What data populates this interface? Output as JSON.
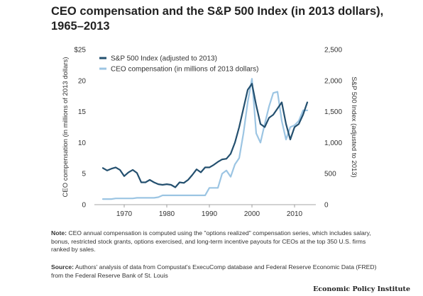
{
  "title": "CEO compensation and the S&P 500 Index (in 2013 dollars), 1965–2013",
  "note": {
    "label": "Note:",
    "text": "CEO annual compensation is computed using the \"options realized\" compensation series, which includes salary, bonus, restricted stock grants, options exercised, and long-term incentive payouts for CEOs at the top 350 U.S. firms ranked by sales."
  },
  "source": {
    "label": "Source:",
    "text": "Authors' analysis of data from Compustat's ExecuComp database and Federal Reserve Economic Data (FRED) from the Federal Reserve Bank of St. Louis"
  },
  "brand": "Economic Policy Institute",
  "colors": {
    "sp500": "#24506f",
    "ceo": "#9cc5e3",
    "text": "#333333"
  },
  "chart_data": {
    "type": "line",
    "xlabel": "",
    "ylabel": "CEO compensation (in millions of 2013 dollars)",
    "ylabel_right": "S&P 500 Index (adjusted to 2013)",
    "xlim": [
      1963,
      2015
    ],
    "ylim": [
      0,
      25
    ],
    "ylim_right": [
      0,
      2500
    ],
    "x_ticks": [
      "1970",
      "1980",
      "1990",
      "2000",
      "2010"
    ],
    "y_ticks": [
      "0",
      "5",
      "10",
      "15",
      "20",
      "$25"
    ],
    "y_ticks_right": [
      "0",
      "500",
      "1,000",
      "1,500",
      "2,000",
      "2,500"
    ],
    "legend_position": "top-left",
    "grid": false,
    "series": [
      {
        "name": "S&P 500 Index (adjusted to 2013)",
        "axis": "right",
        "x": [
          1965,
          1966,
          1967,
          1968,
          1969,
          1970,
          1971,
          1972,
          1973,
          1974,
          1975,
          1976,
          1977,
          1978,
          1979,
          1980,
          1981,
          1982,
          1983,
          1984,
          1985,
          1986,
          1987,
          1988,
          1989,
          1990,
          1991,
          1992,
          1993,
          1994,
          1995,
          1996,
          1997,
          1998,
          1999,
          2000,
          2001,
          2002,
          2003,
          2004,
          2005,
          2006,
          2007,
          2008,
          2009,
          2010,
          2011,
          2012,
          2013
        ],
        "values": [
          590,
          550,
          580,
          600,
          560,
          460,
          520,
          560,
          510,
          360,
          360,
          400,
          360,
          330,
          320,
          330,
          320,
          280,
          360,
          350,
          400,
          480,
          570,
          520,
          600,
          600,
          640,
          690,
          730,
          740,
          820,
          1000,
          1250,
          1550,
          1850,
          1950,
          1600,
          1300,
          1250,
          1400,
          1450,
          1550,
          1650,
          1300,
          1050,
          1250,
          1300,
          1450,
          1650
        ]
      },
      {
        "name": "CEO compensation (in millions of 2013 dollars)",
        "axis": "left",
        "x": [
          1965,
          1966,
          1967,
          1968,
          1969,
          1970,
          1971,
          1972,
          1973,
          1974,
          1975,
          1976,
          1977,
          1978,
          1979,
          1980,
          1981,
          1982,
          1983,
          1984,
          1985,
          1986,
          1987,
          1988,
          1989,
          1990,
          1991,
          1992,
          1993,
          1994,
          1995,
          1996,
          1997,
          1998,
          1999,
          2000,
          2001,
          2002,
          2003,
          2004,
          2005,
          2006,
          2007,
          2008,
          2009,
          2010,
          2011,
          2012,
          2013
        ],
        "values": [
          0.9,
          0.9,
          0.9,
          1.0,
          1.0,
          1.0,
          1.0,
          1.0,
          1.1,
          1.1,
          1.1,
          1.1,
          1.1,
          1.2,
          1.5,
          1.5,
          1.5,
          1.5,
          1.5,
          1.5,
          1.5,
          1.5,
          1.5,
          1.5,
          1.5,
          2.7,
          2.7,
          2.7,
          5.0,
          5.5,
          4.5,
          6.5,
          7.5,
          11.5,
          16.5,
          20.3,
          11.5,
          10.0,
          13.0,
          15.8,
          18.0,
          18.2,
          13.5,
          10.5,
          12.5,
          12.8,
          13.5,
          15.2,
          15.2
        ]
      }
    ]
  }
}
